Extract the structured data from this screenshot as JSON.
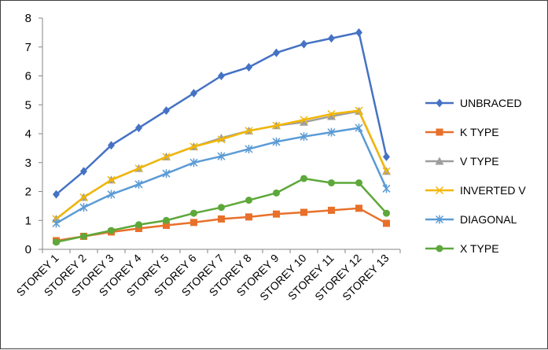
{
  "chart_data": {
    "type": "line",
    "title": "",
    "xlabel": "",
    "ylabel": "",
    "categories": [
      "STOREY 1",
      "STOREY 2",
      "STOREY 3",
      "STOREY 4",
      "STOREY 5",
      "STOREY 6",
      "STOREY 7",
      "STOREY 8",
      "STOREY 9",
      "STOREY 10",
      "STOREY 11",
      "STOREY 12",
      "STOREY 13"
    ],
    "ylim": [
      0,
      8
    ],
    "yticks": [
      0,
      1,
      2,
      3,
      4,
      5,
      6,
      7,
      8
    ],
    "grid": false,
    "legend_position": "right",
    "series": [
      {
        "name": "UNBRACED",
        "color": "#4572C4",
        "marker": "diamond",
        "values": [
          1.9,
          2.7,
          3.6,
          4.2,
          4.8,
          5.4,
          6.0,
          6.3,
          6.8,
          7.1,
          7.3,
          7.5,
          3.2
        ]
      },
      {
        "name": "K TYPE",
        "color": "#E8702A",
        "marker": "square",
        "values": [
          0.3,
          0.45,
          0.6,
          0.72,
          0.83,
          0.93,
          1.05,
          1.12,
          1.22,
          1.28,
          1.35,
          1.42,
          0.9
        ]
      },
      {
        "name": "V TYPE",
        "color": "#9E9E9E",
        "marker": "triangle",
        "values": [
          1.05,
          1.8,
          2.4,
          2.8,
          3.2,
          3.55,
          3.85,
          4.1,
          4.28,
          4.4,
          4.6,
          4.78,
          2.7
        ]
      },
      {
        "name": "INVERTED V",
        "color": "#F2B705",
        "marker": "x",
        "values": [
          1.05,
          1.8,
          2.4,
          2.8,
          3.2,
          3.55,
          3.8,
          4.1,
          4.28,
          4.48,
          4.68,
          4.8,
          2.7
        ]
      },
      {
        "name": "DIAGONAL",
        "color": "#5B9BD5",
        "marker": "asterisk",
        "values": [
          0.9,
          1.45,
          1.9,
          2.25,
          2.62,
          3.0,
          3.22,
          3.47,
          3.72,
          3.9,
          4.05,
          4.2,
          2.1
        ]
      },
      {
        "name": "X TYPE",
        "color": "#5DA83A",
        "marker": "circle",
        "values": [
          0.25,
          0.45,
          0.65,
          0.85,
          1.0,
          1.25,
          1.45,
          1.7,
          1.95,
          2.45,
          2.3,
          2.3,
          1.25
        ]
      }
    ]
  }
}
